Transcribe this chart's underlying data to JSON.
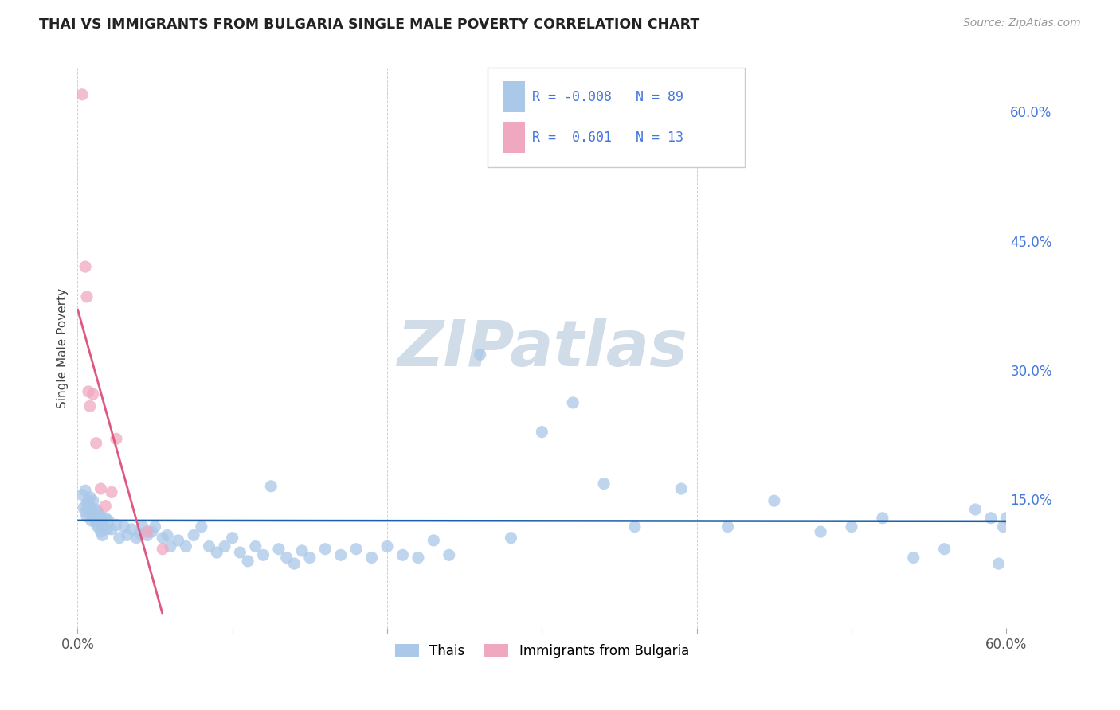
{
  "title": "THAI VS IMMIGRANTS FROM BULGARIA SINGLE MALE POVERTY CORRELATION CHART",
  "source": "Source: ZipAtlas.com",
  "ylabel_label": "Single Male Poverty",
  "x_min": 0.0,
  "x_max": 0.6,
  "y_min": 0.0,
  "y_max": 0.65,
  "x_ticks": [
    0.0,
    0.1,
    0.2,
    0.3,
    0.4,
    0.5,
    0.6
  ],
  "y_ticks": [
    0.0,
    0.15,
    0.3,
    0.45,
    0.6
  ],
  "y_tick_labels": [
    "",
    "15.0%",
    "30.0%",
    "45.0%",
    "60.0%"
  ],
  "grid_color": "#d0d0d0",
  "background_color": "#ffffff",
  "blue_scatter_color": "#aac8e8",
  "blue_line_color": "#1a5fa8",
  "pink_scatter_color": "#f0a8c0",
  "pink_line_color": "#e05880",
  "legend_blue_label": "Thais",
  "legend_pink_label": "Immigrants from Bulgaria",
  "R_blue": -0.008,
  "N_blue": 89,
  "R_pink": 0.601,
  "N_pink": 13,
  "thai_x": [
    0.003,
    0.004,
    0.005,
    0.005,
    0.006,
    0.006,
    0.007,
    0.007,
    0.008,
    0.008,
    0.009,
    0.009,
    0.01,
    0.01,
    0.011,
    0.012,
    0.012,
    0.013,
    0.013,
    0.014,
    0.015,
    0.015,
    0.016,
    0.016,
    0.017,
    0.018,
    0.019,
    0.02,
    0.022,
    0.025,
    0.027,
    0.03,
    0.032,
    0.035,
    0.038,
    0.04,
    0.042,
    0.045,
    0.048,
    0.05,
    0.055,
    0.058,
    0.06,
    0.065,
    0.07,
    0.075,
    0.08,
    0.085,
    0.09,
    0.095,
    0.1,
    0.105,
    0.11,
    0.115,
    0.12,
    0.125,
    0.13,
    0.135,
    0.14,
    0.145,
    0.15,
    0.16,
    0.17,
    0.18,
    0.19,
    0.2,
    0.21,
    0.22,
    0.23,
    0.24,
    0.26,
    0.28,
    0.3,
    0.32,
    0.34,
    0.36,
    0.39,
    0.42,
    0.45,
    0.48,
    0.5,
    0.52,
    0.54,
    0.56,
    0.58,
    0.59,
    0.595,
    0.598,
    0.6
  ],
  "thai_y": [
    0.155,
    0.14,
    0.16,
    0.135,
    0.145,
    0.13,
    0.148,
    0.138,
    0.152,
    0.142,
    0.135,
    0.125,
    0.148,
    0.132,
    0.128,
    0.138,
    0.122,
    0.135,
    0.118,
    0.125,
    0.13,
    0.112,
    0.125,
    0.108,
    0.118,
    0.128,
    0.115,
    0.125,
    0.115,
    0.12,
    0.105,
    0.118,
    0.108,
    0.115,
    0.105,
    0.11,
    0.118,
    0.108,
    0.112,
    0.118,
    0.105,
    0.108,
    0.095,
    0.102,
    0.095,
    0.108,
    0.118,
    0.095,
    0.088,
    0.095,
    0.105,
    0.088,
    0.078,
    0.095,
    0.085,
    0.165,
    0.092,
    0.082,
    0.075,
    0.09,
    0.082,
    0.092,
    0.085,
    0.092,
    0.082,
    0.095,
    0.085,
    0.082,
    0.102,
    0.085,
    0.318,
    0.105,
    0.228,
    0.262,
    0.168,
    0.118,
    0.162,
    0.118,
    0.148,
    0.112,
    0.118,
    0.128,
    0.082,
    0.092,
    0.138,
    0.128,
    0.075,
    0.118,
    0.128
  ],
  "bulgaria_x": [
    0.003,
    0.005,
    0.006,
    0.007,
    0.008,
    0.01,
    0.012,
    0.015,
    0.018,
    0.022,
    0.025,
    0.045,
    0.055
  ],
  "bulgaria_y": [
    0.62,
    0.42,
    0.385,
    0.275,
    0.258,
    0.272,
    0.215,
    0.162,
    0.142,
    0.158,
    0.22,
    0.112,
    0.092
  ],
  "watermark_text": "ZIPatlas",
  "watermark_color": "#d0dce8"
}
